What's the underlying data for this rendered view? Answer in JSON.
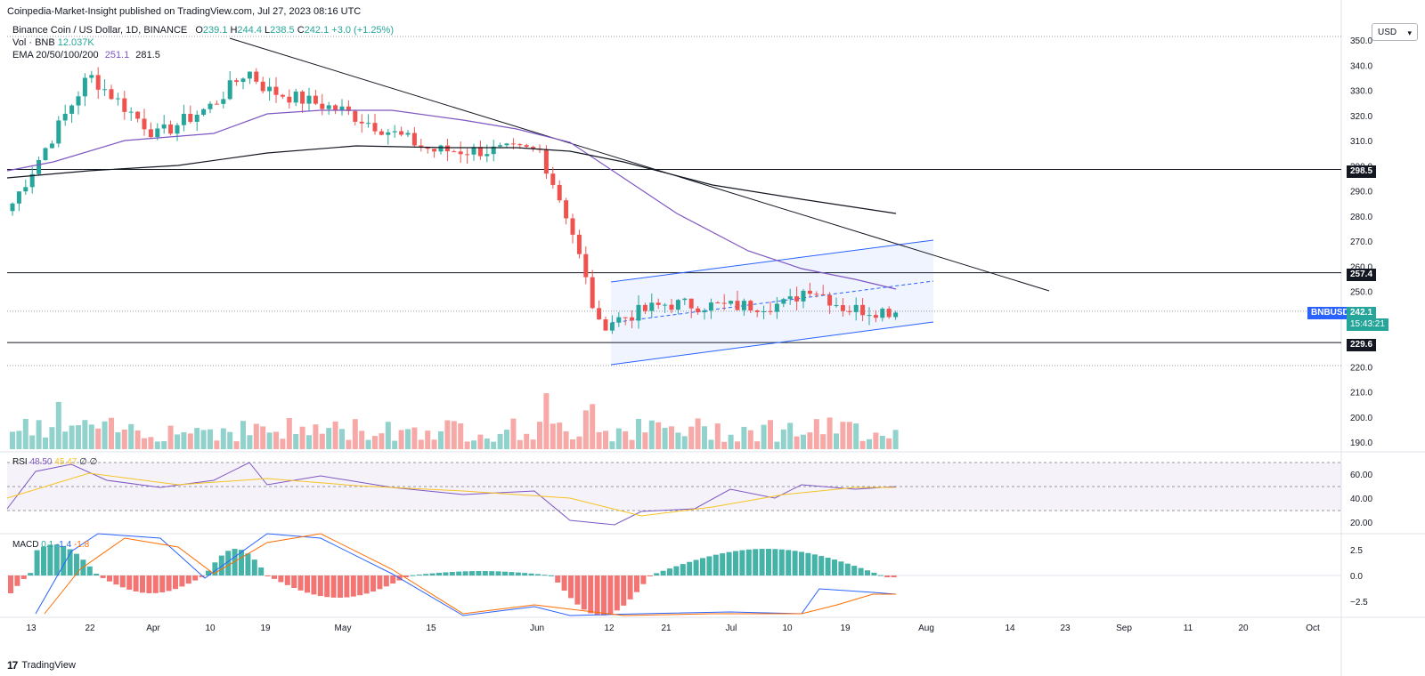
{
  "publisher_line": "Coinpedia-Market-Insight published on TradingView.com, Jul 27, 2023 08:16 UTC",
  "legend": {
    "symbol": "Binance Coin / US Dollar, 1D, BINANCE",
    "o_label": "O",
    "o_value": "239.1",
    "h_label": "H",
    "h_value": "244.4",
    "l_label": "L",
    "l_value": "238.5",
    "c_label": "C",
    "c_value": "242.1",
    "change": "+3.0 (+1.25%)",
    "vol_label": "Vol · BNB",
    "vol_value": "12.037K",
    "ema_label": "EMA 20/50/100/200",
    "ema_value1": "251.1",
    "ema_value2": "281.5"
  },
  "currency_button": "USD",
  "price_axis": {
    "ticks": [
      "350.0",
      "340.0",
      "330.0",
      "320.0",
      "310.0",
      "300.0",
      "290.0",
      "280.0",
      "270.0",
      "260.0",
      "250.0",
      "240.0",
      "230.0",
      "220.0",
      "210.0",
      "200.0",
      "190.0"
    ],
    "level_labels": [
      "298.5",
      "257.4",
      "229.6"
    ],
    "ticker_label": "BNBUSD",
    "last_price": "242.1",
    "countdown": "15:43:21"
  },
  "rsi": {
    "label": "RSI",
    "value": "48.50",
    "value2": "45.47",
    "extra": "∅ ∅",
    "ticks": [
      "60.00",
      "40.00",
      "20.00"
    ]
  },
  "macd": {
    "label": "MACD",
    "value": "0.1",
    "value2": "-1.4",
    "value3": "-1.8",
    "ticks": [
      "2.5",
      "0.0",
      "−2.5"
    ]
  },
  "time_axis": [
    "13",
    "22",
    "Apr",
    "10",
    "19",
    "May",
    "15",
    "Jun",
    "12",
    "21",
    "Jul",
    "10",
    "19",
    "Aug",
    "14",
    "23",
    "Sep",
    "11",
    "20",
    "Oct"
  ],
  "footer": {
    "brand": "TradingView",
    "mark": "17"
  },
  "colors": {
    "up": "#26a69a",
    "down": "#ef5350",
    "ema_fast": "#7e57c2",
    "ema_slow": "#131722",
    "channel": "#2962ff",
    "rsi_line": "#7e57c2",
    "rsi_ma": "#f7c325",
    "macd_line": "#2962ff",
    "signal_line": "#ff6d00"
  },
  "chart_data": {
    "type": "line",
    "title": "Binance Coin / US Dollar, 1D, BINANCE",
    "y_range": [
      190,
      350
    ],
    "horizontal_levels": [
      298.5,
      257.4,
      229.6
    ],
    "last_close": 242.1,
    "close_series": [
      {
        "date": "Mar 13",
        "close": 285
      },
      {
        "date": "Mar 22",
        "close": 336
      },
      {
        "date": "Apr 1",
        "close": 312
      },
      {
        "date": "Apr 10",
        "close": 324
      },
      {
        "date": "Apr 16",
        "close": 338
      },
      {
        "date": "Apr 19",
        "close": 330
      },
      {
        "date": "May 1",
        "close": 322
      },
      {
        "date": "May 15",
        "close": 306
      },
      {
        "date": "Jun 1",
        "close": 306
      },
      {
        "date": "Jun 5",
        "close": 277
      },
      {
        "date": "Jun 10",
        "close": 236
      },
      {
        "date": "Jun 12",
        "close": 238
      },
      {
        "date": "Jun 21",
        "close": 245
      },
      {
        "date": "Jul 1",
        "close": 244
      },
      {
        "date": "Jul 10",
        "close": 245
      },
      {
        "date": "Jul 14",
        "close": 252
      },
      {
        "date": "Jul 19",
        "close": 243
      },
      {
        "date": "Jul 27",
        "close": 242.1
      }
    ],
    "ema20_end": 251.1,
    "ema200_end": 281.5
  }
}
